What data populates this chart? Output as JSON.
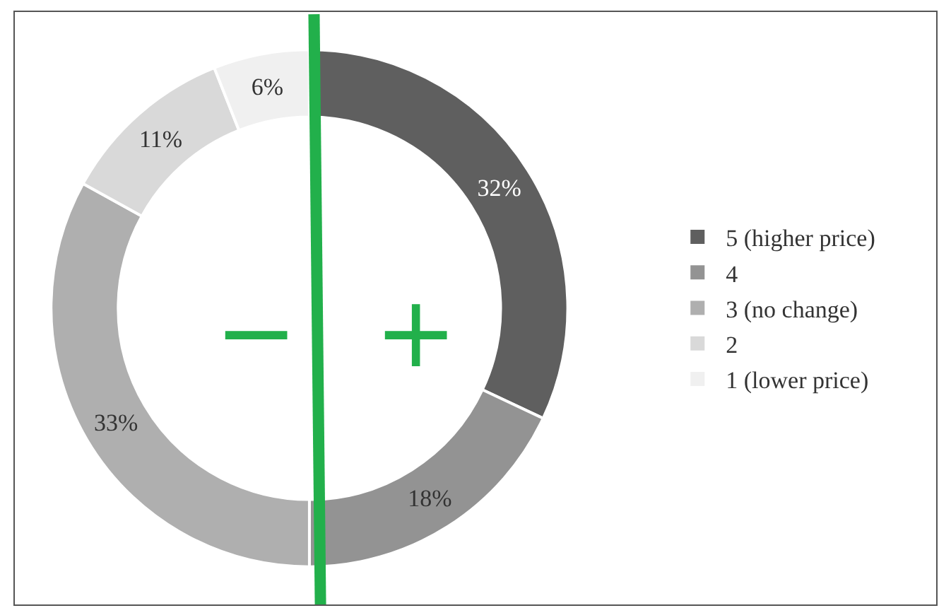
{
  "chart_data": {
    "type": "donut",
    "categories": [
      "5 (higher price)",
      "4",
      "3 (no change)",
      "2",
      "1 (lower price)"
    ],
    "values": [
      32,
      18,
      33,
      11,
      6
    ],
    "value_labels": [
      "32%",
      "18%",
      "33%",
      "11%",
      "6%"
    ],
    "colors": [
      "#5f5f5f",
      "#939393",
      "#afafaf",
      "#d9d9d9",
      "#f0f0f0"
    ],
    "annotations": [
      "−",
      "+"
    ],
    "legend": "right"
  }
}
